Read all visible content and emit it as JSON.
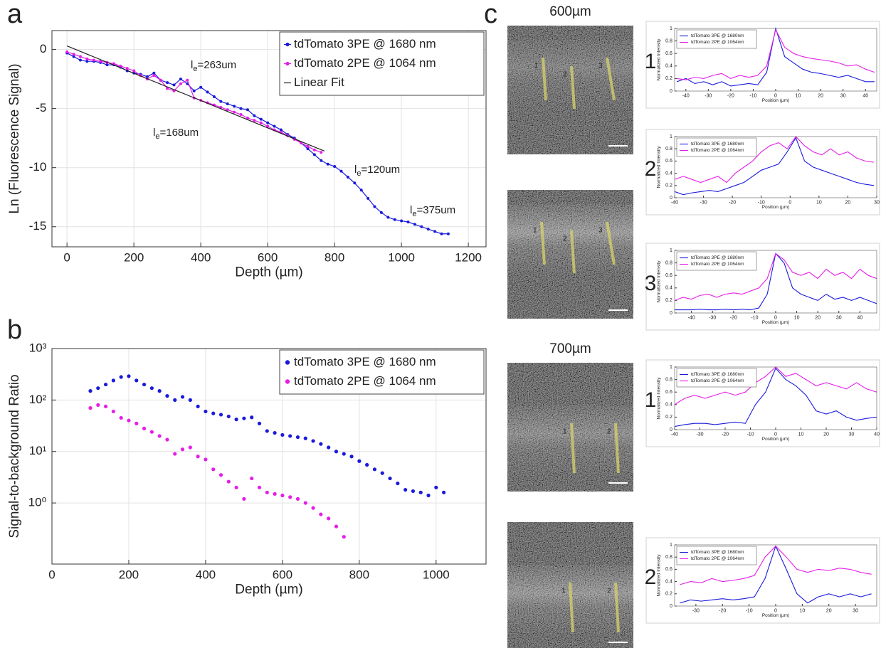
{
  "panel_c": {
    "label": "c",
    "images": [
      {
        "title": "600µm",
        "roi_labels": [
          "1",
          "2",
          "3"
        ]
      },
      {
        "roi_labels": [
          "1",
          "2",
          "3"
        ]
      },
      {
        "title": "700µm",
        "roi_labels": [
          "1",
          "2"
        ]
      },
      {
        "roi_labels": [
          "1",
          "2"
        ]
      }
    ]
  },
  "chart_data": [
    {
      "type": "line",
      "panel_label": "a",
      "xlabel": "Depth (µm)",
      "ylabel": "Ln (Fluorescence Signal)",
      "xlim": [
        -45,
        1253
      ],
      "ylim": [
        -16.7,
        1.6
      ],
      "xticks": [
        0,
        200,
        400,
        600,
        800,
        1000,
        1200
      ],
      "yticks": [
        0,
        -5,
        -10,
        -15
      ],
      "grid": true,
      "legend": "upper right",
      "annotations": [
        {
          "symbol": "l",
          "subscript": "e",
          "text": "=263um"
        },
        {
          "symbol": "l",
          "subscript": "e",
          "text": "=168um"
        },
        {
          "symbol": "l",
          "subscript": "e",
          "text": "=120um"
        },
        {
          "symbol": "l",
          "subscript": "e",
          "text": "=375um"
        }
      ],
      "series": [
        {
          "name": "tdTomato 3PE @ 1680 nm",
          "color": "#1a1adb",
          "marker": true,
          "x": [
            0,
            20,
            40,
            60,
            80,
            100,
            120,
            140,
            160,
            180,
            200,
            220,
            240,
            260,
            280,
            300,
            320,
            340,
            360,
            380,
            400,
            420,
            440,
            460,
            480,
            500,
            520,
            540,
            560,
            580,
            600,
            620,
            640,
            660,
            680,
            700,
            720,
            740,
            760,
            780,
            800,
            820,
            840,
            860,
            880,
            900,
            920,
            940,
            960,
            980,
            1000,
            1020,
            1040,
            1060,
            1080,
            1100,
            1120,
            1140
          ],
          "values": [
            -0.3,
            -0.6,
            -0.9,
            -1.0,
            -1.0,
            -1.1,
            -1.3,
            -1.3,
            -1.5,
            -1.8,
            -2.0,
            -2.1,
            -2.3,
            -2.0,
            -2.6,
            -2.8,
            -3.0,
            -2.5,
            -2.9,
            -3.5,
            -3.2,
            -3.6,
            -4.0,
            -4.4,
            -4.6,
            -4.8,
            -5.0,
            -5.1,
            -5.6,
            -5.9,
            -6.2,
            -6.5,
            -6.8,
            -7.2,
            -7.5,
            -7.9,
            -8.4,
            -8.9,
            -9.4,
            -9.7,
            -9.9,
            -10.3,
            -10.8,
            -11.3,
            -11.9,
            -12.6,
            -13.3,
            -13.8,
            -14.2,
            -14.4,
            -14.5,
            -14.6,
            -14.8,
            -15.0,
            -15.2,
            -15.4,
            -15.6,
            -15.6
          ]
        },
        {
          "name": "tdTomato 2PE @ 1064 nm",
          "color": "#e61ee6",
          "marker": true,
          "x": [
            0,
            20,
            40,
            60,
            80,
            100,
            120,
            140,
            160,
            180,
            200,
            220,
            240,
            260,
            280,
            300,
            320,
            340,
            360,
            380,
            400,
            420,
            440,
            460,
            480,
            500,
            520,
            540,
            560,
            580,
            600,
            620,
            640,
            660,
            680,
            700,
            720,
            740,
            760
          ],
          "values": [
            -0.2,
            -0.4,
            -0.6,
            -0.8,
            -0.9,
            -1.0,
            -1.1,
            -1.2,
            -1.4,
            -1.6,
            -1.8,
            -2.2,
            -2.5,
            -2.2,
            -2.6,
            -3.3,
            -3.5,
            -2.9,
            -2.6,
            -4.1,
            -4.3,
            -4.5,
            -4.7,
            -4.9,
            -5.1,
            -5.3,
            -5.5,
            -5.8,
            -6.0,
            -6.2,
            -6.5,
            -6.8,
            -7.0,
            -7.3,
            -7.6,
            -7.9,
            -8.2,
            -8.5,
            -8.7
          ]
        },
        {
          "name": "Linear Fit",
          "color": "#222222",
          "marker": false,
          "x": [
            0,
            770
          ],
          "values": [
            0.3,
            -8.6
          ]
        }
      ]
    },
    {
      "type": "scatter",
      "panel_label": "b",
      "xlabel": "Depth (µm)",
      "ylabel": "Signal-to-background Ratio",
      "xlim": [
        0,
        1130
      ],
      "ylim": [
        0.065,
        1000
      ],
      "log_y": true,
      "xticks": [
        0,
        200,
        400,
        600,
        800,
        1000
      ],
      "yticks": [
        {
          "value": 1,
          "label": "10⁰"
        },
        {
          "value": 10,
          "label": "10¹"
        },
        {
          "value": 100,
          "label": "10²"
        },
        {
          "value": 1000,
          "label": "10³"
        }
      ],
      "grid": true,
      "legend": "upper right",
      "series": [
        {
          "name": "tdTomato 3PE @ 1680 nm",
          "color": "#1a1adb",
          "x": [
            100,
            120,
            140,
            160,
            180,
            200,
            220,
            240,
            260,
            280,
            300,
            320,
            340,
            360,
            380,
            400,
            420,
            440,
            460,
            480,
            500,
            520,
            540,
            560,
            580,
            600,
            620,
            640,
            660,
            680,
            700,
            720,
            740,
            760,
            780,
            800,
            820,
            840,
            860,
            880,
            900,
            920,
            940,
            960,
            980,
            1000,
            1020
          ],
          "values": [
            150,
            170,
            200,
            240,
            280,
            290,
            240,
            200,
            170,
            150,
            120,
            100,
            115,
            100,
            75,
            60,
            55,
            52,
            48,
            42,
            44,
            46,
            35,
            25,
            23,
            21,
            20,
            19,
            18,
            16,
            14,
            12,
            10,
            9,
            8,
            6.5,
            5.5,
            4.5,
            3.8,
            3,
            2.4,
            1.8,
            1.7,
            1.6,
            1.4,
            2.0,
            1.6
          ]
        },
        {
          "name": "tdTomato 2PE @ 1064 nm",
          "color": "#e61ee6",
          "x": [
            100,
            120,
            140,
            160,
            180,
            200,
            220,
            240,
            260,
            280,
            300,
            320,
            340,
            360,
            380,
            400,
            420,
            440,
            460,
            480,
            500,
            520,
            540,
            560,
            580,
            600,
            620,
            640,
            660,
            680,
            700,
            720,
            740,
            760
          ],
          "values": [
            70,
            80,
            75,
            60,
            45,
            40,
            35,
            28,
            24,
            20,
            17,
            9,
            11,
            12,
            8,
            7,
            4.5,
            3.5,
            2.6,
            2,
            1.2,
            3,
            2,
            1.6,
            1.5,
            1.4,
            1.3,
            1.2,
            1.0,
            0.8,
            0.6,
            0.5,
            0.35,
            0.22
          ]
        }
      ]
    },
    {
      "type": "line",
      "label": "1",
      "xlabel": "Position (µm)",
      "ylabel": "Normalized Intensity",
      "xlim": [
        -45,
        45
      ],
      "ylim": [
        0,
        1
      ],
      "xticks": [
        -40,
        -30,
        -20,
        -10,
        0,
        10,
        20,
        30,
        40
      ],
      "yticks": [
        0,
        0.2,
        0.4,
        0.6,
        0.8,
        1
      ],
      "legend": "upper left",
      "x": [
        -44,
        -40,
        -36,
        -32,
        -28,
        -24,
        -20,
        -16,
        -12,
        -8,
        -4,
        0,
        4,
        8,
        12,
        16,
        20,
        24,
        28,
        32,
        36,
        40,
        44
      ],
      "series": [
        {
          "name": "tdTomato 3PE @ 1680nm",
          "color": "#1a1adb",
          "values": [
            0.15,
            0.2,
            0.12,
            0.15,
            0.1,
            0.15,
            0.08,
            0.1,
            0.12,
            0.1,
            0.3,
            1.0,
            0.55,
            0.45,
            0.35,
            0.3,
            0.28,
            0.25,
            0.22,
            0.25,
            0.2,
            0.15,
            0.15
          ]
        },
        {
          "name": "tdTomato 2PE @ 1064nm",
          "color": "#e61ee6",
          "values": [
            0.2,
            0.18,
            0.22,
            0.2,
            0.25,
            0.28,
            0.2,
            0.25,
            0.22,
            0.25,
            0.4,
            0.98,
            0.7,
            0.6,
            0.55,
            0.52,
            0.5,
            0.48,
            0.45,
            0.4,
            0.42,
            0.35,
            0.3
          ]
        }
      ]
    },
    {
      "type": "line",
      "label": "2",
      "xlabel": "Position (µm)",
      "ylabel": "Normalized Intensity",
      "xlim": [
        -40,
        30
      ],
      "ylim": [
        0,
        1
      ],
      "xticks": [
        -40,
        -30,
        -20,
        -10,
        0,
        10,
        20,
        30
      ],
      "yticks": [
        0,
        0.2,
        0.4,
        0.6,
        0.8,
        1
      ],
      "legend": "upper left",
      "x": [
        -40,
        -37,
        -34,
        -31,
        -28,
        -25,
        -22,
        -19,
        -16,
        -13,
        -10,
        -7,
        -4,
        -1,
        2,
        5,
        8,
        11,
        14,
        17,
        20,
        23,
        26,
        29
      ],
      "series": [
        {
          "name": "tdTomato 3PE @ 1680nm",
          "color": "#1a1adb",
          "values": [
            0.1,
            0.05,
            0.08,
            0.1,
            0.12,
            0.1,
            0.15,
            0.2,
            0.25,
            0.35,
            0.45,
            0.5,
            0.55,
            0.75,
            0.98,
            0.6,
            0.5,
            0.45,
            0.4,
            0.35,
            0.3,
            0.25,
            0.22,
            0.2
          ]
        },
        {
          "name": "tdTomato 2PE @ 1064nm",
          "color": "#e61ee6",
          "values": [
            0.3,
            0.35,
            0.3,
            0.25,
            0.3,
            0.35,
            0.25,
            0.4,
            0.5,
            0.6,
            0.75,
            0.85,
            0.9,
            0.8,
            1.0,
            0.85,
            0.75,
            0.7,
            0.8,
            0.7,
            0.75,
            0.65,
            0.6,
            0.58
          ]
        }
      ]
    },
    {
      "type": "line",
      "label": "3",
      "xlabel": "Position (µm)",
      "ylabel": "Normalized Intensity",
      "xlim": [
        -48,
        48
      ],
      "ylim": [
        0,
        1
      ],
      "xticks": [
        -40,
        -30,
        -20,
        -10,
        0,
        10,
        20,
        30,
        40
      ],
      "yticks": [
        0,
        0.2,
        0.4,
        0.6,
        0.8,
        1
      ],
      "legend": "upper left",
      "x": [
        -48,
        -44,
        -40,
        -36,
        -32,
        -28,
        -24,
        -20,
        -16,
        -12,
        -8,
        -4,
        0,
        4,
        8,
        12,
        16,
        20,
        24,
        28,
        32,
        36,
        40,
        44,
        48
      ],
      "series": [
        {
          "name": "tdTomato 3PE @ 1680nm",
          "color": "#1a1adb",
          "values": [
            0.05,
            0.05,
            0.05,
            0.06,
            0.05,
            0.05,
            0.06,
            0.05,
            0.06,
            0.05,
            0.08,
            0.3,
            0.95,
            0.8,
            0.4,
            0.3,
            0.25,
            0.2,
            0.3,
            0.22,
            0.25,
            0.2,
            0.25,
            0.2,
            0.15
          ]
        },
        {
          "name": "tdTomato 2PE @ 1064nm",
          "color": "#e61ee6",
          "values": [
            0.2,
            0.25,
            0.22,
            0.28,
            0.3,
            0.25,
            0.3,
            0.32,
            0.3,
            0.35,
            0.4,
            0.55,
            0.95,
            0.85,
            0.65,
            0.6,
            0.65,
            0.55,
            0.7,
            0.6,
            0.65,
            0.55,
            0.7,
            0.6,
            0.55
          ]
        }
      ]
    },
    {
      "type": "line",
      "label": "1",
      "xlabel": "Position (µm)",
      "ylabel": "Normalized Intensity",
      "xlim": [
        -40,
        40
      ],
      "ylim": [
        0,
        1
      ],
      "xticks": [
        -40,
        -30,
        -20,
        -10,
        0,
        10,
        20,
        30,
        40
      ],
      "yticks": [
        0,
        0.2,
        0.4,
        0.6,
        0.8,
        1
      ],
      "legend": "upper left",
      "x": [
        -40,
        -36,
        -32,
        -28,
        -24,
        -20,
        -16,
        -12,
        -8,
        -4,
        0,
        4,
        8,
        12,
        16,
        20,
        24,
        28,
        32,
        36,
        40
      ],
      "series": [
        {
          "name": "tdTomato 3PE @ 1680nm",
          "color": "#1a1adb",
          "values": [
            0.05,
            0.08,
            0.1,
            0.1,
            0.08,
            0.1,
            0.12,
            0.1,
            0.4,
            0.6,
            0.98,
            0.8,
            0.7,
            0.55,
            0.3,
            0.25,
            0.3,
            0.2,
            0.15,
            0.18,
            0.2
          ]
        },
        {
          "name": "tdTomato 2PE @ 1064nm",
          "color": "#e61ee6",
          "values": [
            0.4,
            0.5,
            0.55,
            0.5,
            0.55,
            0.6,
            0.55,
            0.6,
            0.75,
            0.85,
            1.0,
            0.85,
            0.9,
            0.8,
            0.7,
            0.75,
            0.7,
            0.65,
            0.75,
            0.65,
            0.6
          ]
        }
      ]
    },
    {
      "type": "line",
      "label": "2",
      "xlabel": "Position (µm)",
      "ylabel": "Normalized Intensity",
      "xlim": [
        -38,
        38
      ],
      "ylim": [
        0,
        1
      ],
      "xticks": [
        -30,
        -20,
        -10,
        0,
        10,
        20,
        30
      ],
      "yticks": [
        0,
        0.2,
        0.4,
        0.6,
        0.8,
        1
      ],
      "legend": "upper left",
      "x": [
        -36,
        -32,
        -28,
        -24,
        -20,
        -16,
        -12,
        -8,
        -4,
        0,
        4,
        8,
        12,
        16,
        20,
        24,
        28,
        32,
        36
      ],
      "series": [
        {
          "name": "tdTomato 3PE @ 1680nm",
          "color": "#1a1adb",
          "values": [
            0.05,
            0.1,
            0.08,
            0.1,
            0.12,
            0.1,
            0.12,
            0.15,
            0.45,
            0.98,
            0.6,
            0.2,
            0.05,
            0.15,
            0.2,
            0.15,
            0.2,
            0.15,
            0.2
          ]
        },
        {
          "name": "tdTomato 2PE @ 1064nm",
          "color": "#e61ee6",
          "values": [
            0.35,
            0.4,
            0.38,
            0.45,
            0.4,
            0.42,
            0.45,
            0.5,
            0.8,
            0.98,
            0.8,
            0.6,
            0.55,
            0.6,
            0.58,
            0.62,
            0.6,
            0.55,
            0.52
          ]
        }
      ]
    }
  ]
}
